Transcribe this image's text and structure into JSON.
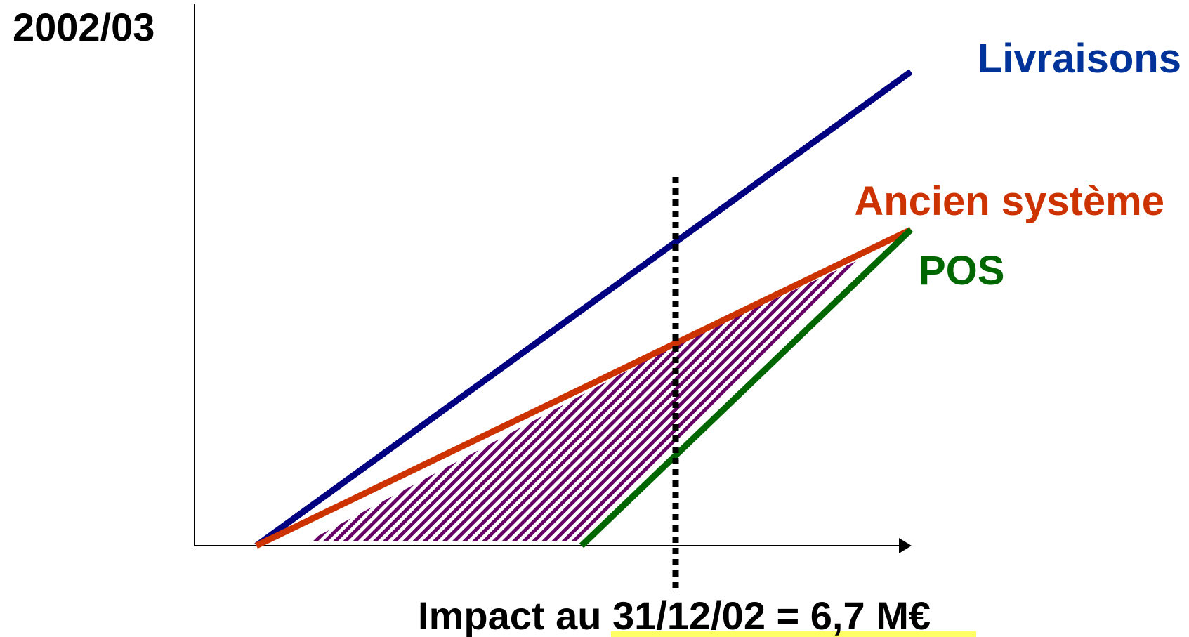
{
  "title": "2002/03",
  "caption": "Impact au 31/12/02 = 6,7 M€",
  "series": [
    {
      "key": "livraisons",
      "label": "Livraisons",
      "color": "#000080"
    },
    {
      "key": "ancien",
      "label": "Ancien système",
      "color": "#cc3300"
    },
    {
      "key": "pos",
      "label": "POS",
      "color": "#006600"
    }
  ],
  "colors": {
    "axis": "#000000",
    "hatch": "#660066",
    "marker": "#000000"
  }
}
